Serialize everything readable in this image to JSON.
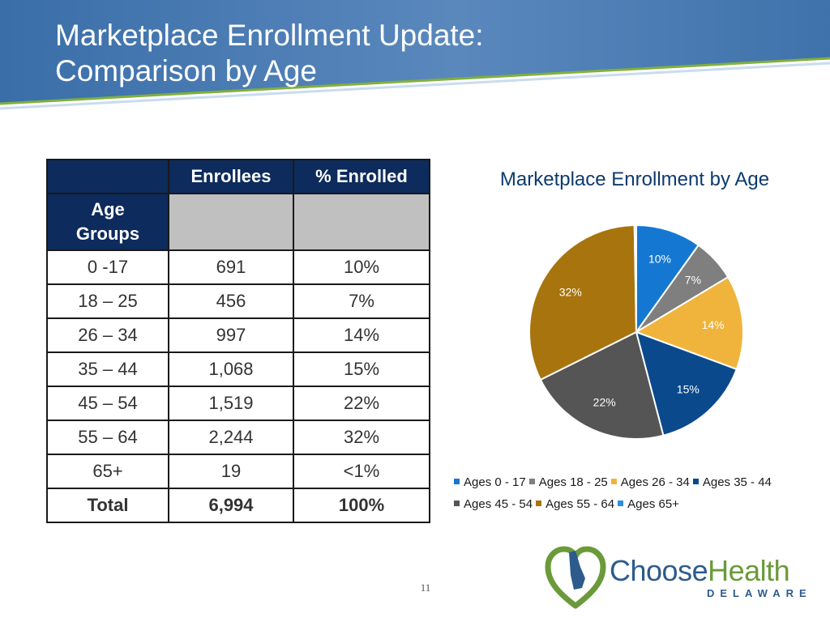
{
  "slide": {
    "title_line1": "Marketplace Enrollment Update:",
    "title_line2": "Comparison by Age",
    "page_number": "11"
  },
  "table": {
    "headers": [
      "",
      "Enrollees",
      "% Enrolled"
    ],
    "row_header_line1": "Age",
    "row_header_line2": "Groups",
    "rows": [
      [
        "0 -17",
        "691",
        "10%"
      ],
      [
        "18 – 25",
        "456",
        "7%"
      ],
      [
        "26 – 34",
        "997",
        "14%"
      ],
      [
        "35 – 44",
        "1,068",
        "15%"
      ],
      [
        "45 – 54",
        "1,519",
        "22%"
      ],
      [
        "55 – 64",
        "2,244",
        "32%"
      ],
      [
        "65+",
        "19",
        "<1%"
      ]
    ],
    "total": [
      "Total",
      "6,994",
      "100%"
    ]
  },
  "chart_data": {
    "type": "pie",
    "title": "Marketplace Enrollment by Age",
    "legend_position": "bottom",
    "categories": [
      "Ages 0 - 17",
      "Ages 18 - 25",
      "Ages 26 - 34",
      "Ages 35 - 44",
      "Ages 45 - 54",
      "Ages 55 - 64",
      "Ages 65+"
    ],
    "values": [
      691,
      456,
      997,
      1068,
      1519,
      2244,
      19
    ],
    "labels": [
      "10%",
      "7%",
      "14%",
      "15%",
      "22%",
      "32%",
      ""
    ],
    "colors": [
      "#1478d2",
      "#7f7f7f",
      "#f0b43c",
      "#0a4a8c",
      "#555555",
      "#a8740e",
      "#2e8fe0"
    ]
  },
  "logo": {
    "text_a": "Choose",
    "text_b": "Health",
    "sub": "DELAWARE",
    "colors": {
      "blue": "#2d5b8c",
      "green": "#6b9a3a"
    }
  },
  "icons": {
    "logo_mark": "heart-state-icon"
  }
}
